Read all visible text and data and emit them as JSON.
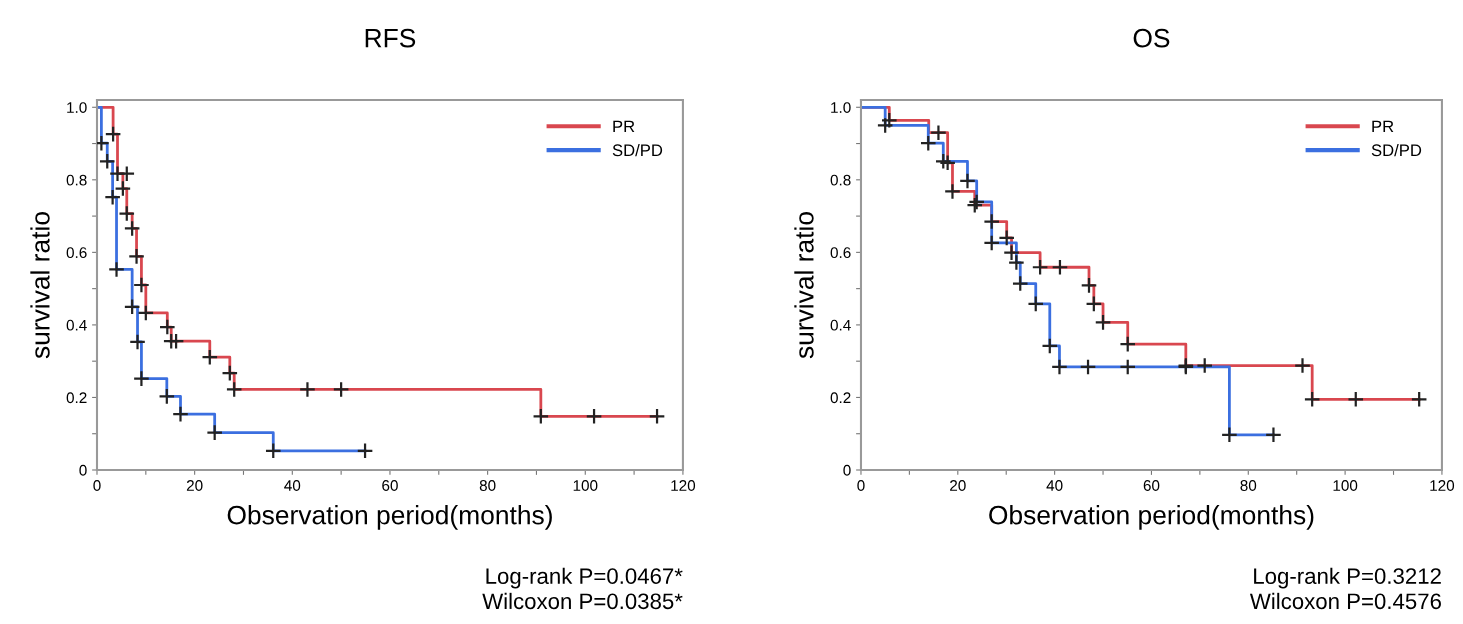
{
  "chart_data": [
    {
      "type": "step",
      "title": "RFS",
      "xlabel": "Observation period(months)",
      "ylabel": "survival ratio",
      "xlim": [
        0,
        120
      ],
      "ylim": [
        0,
        1.02
      ],
      "xticks": [
        0,
        {
          "value": 10,
          "label": null
        },
        20,
        {
          "value": 30,
          "label": null
        },
        40,
        {
          "value": 50,
          "label": null
        },
        60,
        {
          "value": 70,
          "label": null
        },
        80,
        {
          "value": 90,
          "label": null
        },
        100,
        {
          "value": 110,
          "label": null
        },
        120
      ],
      "yticks": [
        {
          "value": 0,
          "label": "0"
        },
        {
          "value": 0.1,
          "label": null
        },
        0.2,
        {
          "value": 0.3,
          "label": null
        },
        0.4,
        {
          "value": 0.5,
          "label": null
        },
        0.6,
        {
          "value": 0.7,
          "label": null
        },
        0.8,
        {
          "value": 0.9,
          "label": null
        },
        {
          "value": 1,
          "label": "1.0"
        }
      ],
      "grid": false,
      "legend": "top right",
      "annotations": [
        "Log-rank P=0.0467*",
        "Wilcoxon P=0.0385*"
      ],
      "series": [
        {
          "name": "PR",
          "color": "#d9474f",
          "x": [
            0,
            3.3,
            4.2,
            5.3,
            6.1,
            7.2,
            8.1,
            9.1,
            10.0,
            14.4,
            15.2,
            23.1,
            27.2,
            28.1,
            90.9,
            114.7
          ],
          "values": [
            1.0,
            0.926,
            0.817,
            0.776,
            0.707,
            0.666,
            0.589,
            0.51,
            0.433,
            0.394,
            0.355,
            0.311,
            0.267,
            0.222,
            0.148,
            0.148
          ]
        },
        {
          "name": "SD/PD",
          "color": "#3b6fe0",
          "x": [
            0,
            0.9,
            2.1,
            3.2,
            4.0,
            7.2,
            8.3,
            9.1,
            14.3,
            17.1,
            24.1,
            36.1,
            54.9
          ],
          "values": [
            1.0,
            0.901,
            0.851,
            0.752,
            0.553,
            0.45,
            0.353,
            0.252,
            0.203,
            0.154,
            0.103,
            0.053,
            0.053
          ]
        },
        {
          "type": "scatter",
          "marker": "cross",
          "color": "#222222",
          "x": [
            3.3,
            4.2,
            6.1,
            5.3,
            6.1,
            7.2,
            8.1,
            9.1,
            10.0,
            14.4,
            15.2,
            16.2,
            23.1,
            27.2,
            28.1,
            43.1,
            50.0,
            90.9,
            101.8,
            114.7
          ],
          "values": [
            0.926,
            0.817,
            0.817,
            0.776,
            0.707,
            0.666,
            0.589,
            0.51,
            0.433,
            0.394,
            0.355,
            0.355,
            0.311,
            0.267,
            0.222,
            0.222,
            0.222,
            0.148,
            0.148,
            0.148
          ]
        },
        {
          "type": "scatter",
          "marker": "cross",
          "color": "#222222",
          "x": [
            0.9,
            2.1,
            3.2,
            4.0,
            7.2,
            8.3,
            9.1,
            14.3,
            17.1,
            24.1,
            36.1,
            54.9
          ],
          "values": [
            0.901,
            0.851,
            0.752,
            0.553,
            0.45,
            0.353,
            0.252,
            0.203,
            0.154,
            0.103,
            0.053,
            0.053
          ]
        }
      ]
    },
    {
      "type": "step",
      "title": "OS",
      "xlabel": "Observation period(months)",
      "ylabel": "survival ratio",
      "xlim": [
        0,
        120
      ],
      "ylim": [
        0,
        1.02
      ],
      "xticks": [
        0,
        {
          "value": 10,
          "label": null
        },
        20,
        {
          "value": 30,
          "label": null
        },
        40,
        {
          "value": 50,
          "label": null
        },
        60,
        {
          "value": 70,
          "label": null
        },
        80,
        {
          "value": 90,
          "label": null
        },
        100,
        {
          "value": 110,
          "label": null
        },
        120
      ],
      "yticks": [
        {
          "value": 0,
          "label": "0"
        },
        {
          "value": 0.1,
          "label": null
        },
        0.2,
        {
          "value": 0.3,
          "label": null
        },
        0.4,
        {
          "value": 0.5,
          "label": null
        },
        0.6,
        {
          "value": 0.7,
          "label": null
        },
        0.8,
        {
          "value": 0.9,
          "label": null
        },
        {
          "value": 1,
          "label": "1.0"
        }
      ],
      "grid": false,
      "legend": "top right",
      "annotations": [
        "Log-rank P=0.3212",
        "Wilcoxon P=0.4576"
      ],
      "series": [
        {
          "name": "PR",
          "color": "#d9474f",
          "x": [
            0,
            5.85,
            14.0,
            17.9,
            18.9,
            23.5,
            27.0,
            30.1,
            31.1,
            37.0,
            47.1,
            48.1,
            50.0,
            55.1,
            67.1,
            93.2,
            115.3
          ],
          "values": [
            1.0,
            0.964,
            0.93,
            0.847,
            0.768,
            0.73,
            0.685,
            0.64,
            0.599,
            0.559,
            0.509,
            0.458,
            0.407,
            0.347,
            0.288,
            0.195,
            0.195
          ]
        },
        {
          "name": "SD/PD",
          "color": "#3b6fe0",
          "x": [
            0,
            5.0,
            13.9,
            17.0,
            22.0,
            23.9,
            27.0,
            32.1,
            32.9,
            36.1,
            39.0,
            41.0,
            76.1,
            85.2
          ],
          "values": [
            1.0,
            0.95,
            0.901,
            0.851,
            0.797,
            0.739,
            0.626,
            0.572,
            0.514,
            0.458,
            0.342,
            0.284,
            0.097,
            0.097
          ]
        },
        {
          "type": "scatter",
          "marker": "cross",
          "color": "#222222",
          "x": [
            5.85,
            16.0,
            17.9,
            18.9,
            23.5,
            27.0,
            30.1,
            31.1,
            37.0,
            41.1,
            47.1,
            48.1,
            50.0,
            55.1,
            67.1,
            71.0,
            91.2,
            93.2,
            102.2,
            115.3
          ],
          "values": [
            0.964,
            0.93,
            0.847,
            0.768,
            0.73,
            0.685,
            0.64,
            0.599,
            0.559,
            0.559,
            0.509,
            0.458,
            0.407,
            0.347,
            0.288,
            0.288,
            0.288,
            0.195,
            0.195,
            0.195
          ]
        },
        {
          "type": "scatter",
          "marker": "cross",
          "color": "#222222",
          "x": [
            5.0,
            13.9,
            17.0,
            22.0,
            23.9,
            27.0,
            32.1,
            32.9,
            36.1,
            39.0,
            41.0,
            46.9,
            55.1,
            67.1,
            76.1,
            85.2
          ],
          "values": [
            0.95,
            0.901,
            0.851,
            0.797,
            0.739,
            0.626,
            0.572,
            0.514,
            0.458,
            0.342,
            0.284,
            0.284,
            0.284,
            0.284,
            0.097,
            0.097
          ]
        }
      ]
    }
  ]
}
